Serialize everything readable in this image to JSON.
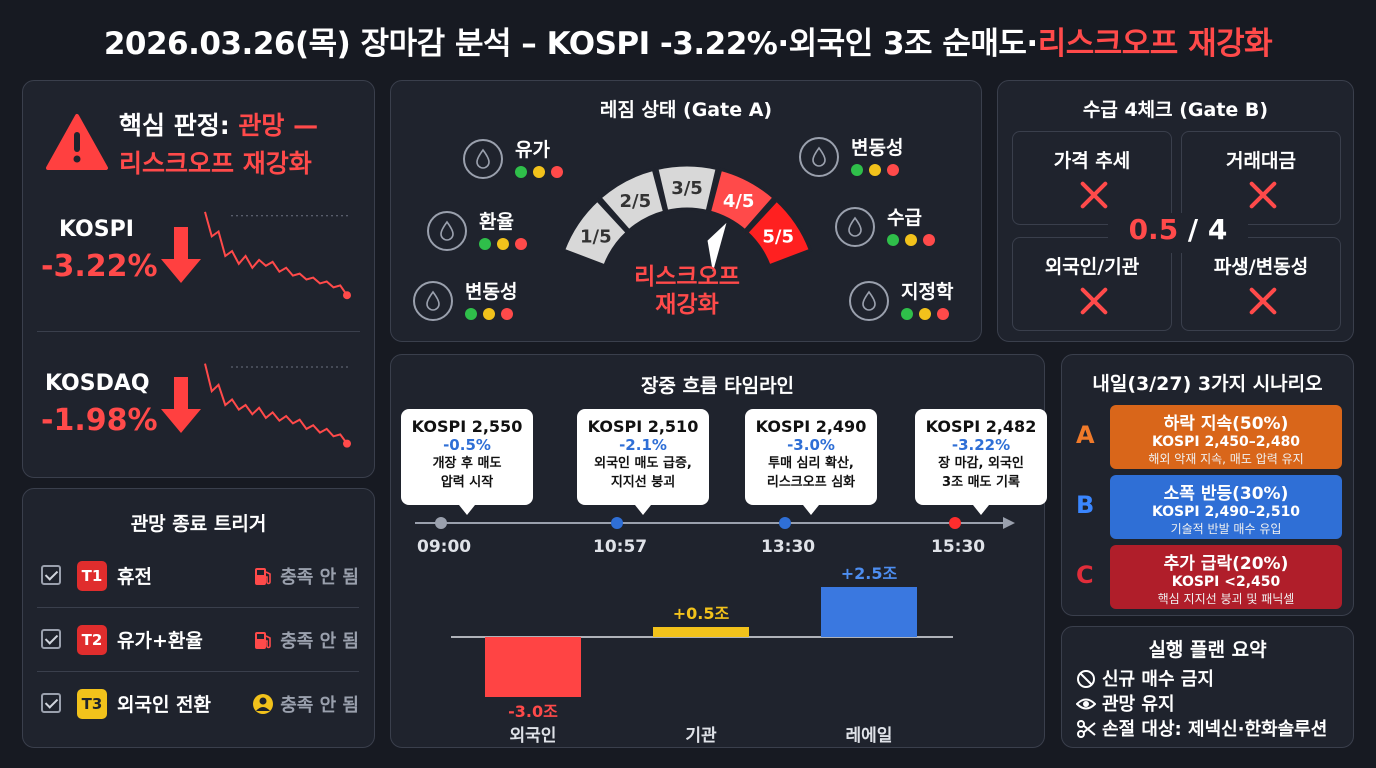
{
  "header": {
    "title_main": "2026.03.26(목) 장마감 분석 – KOSPI -3.22%·외국인 3조 순매도·",
    "title_accent": "리스크오프 재강화"
  },
  "verdict": {
    "icon": "warning-triangle-icon",
    "label": "핵심 판정: ",
    "status_line1": "관망 —",
    "status_line2": "리스크오프 재강화",
    "kospi": {
      "name": "KOSPI",
      "change": "-3.22%",
      "trend": [
        0.95,
        0.7,
        0.75,
        0.5,
        0.55,
        0.42,
        0.5,
        0.38,
        0.46,
        0.4,
        0.44,
        0.34,
        0.38,
        0.3,
        0.32,
        0.26,
        0.28,
        0.22,
        0.24,
        0.18,
        0.2,
        0.1
      ]
    },
    "kosdaq": {
      "name": "KOSDAQ",
      "change": "-1.98%",
      "trend": [
        0.95,
        0.65,
        0.72,
        0.5,
        0.56,
        0.45,
        0.5,
        0.4,
        0.47,
        0.36,
        0.42,
        0.33,
        0.38,
        0.3,
        0.34,
        0.24,
        0.28,
        0.2,
        0.24,
        0.16,
        0.18,
        0.08
      ]
    }
  },
  "triggers": {
    "title": "관망 종료 트리거",
    "items": [
      {
        "badge": "T1",
        "label": "휴전",
        "status": "충족 안 됨",
        "badge_color": "#e02d2d",
        "icon": "fuel-pump-icon"
      },
      {
        "badge": "T2",
        "label": "유가+환율",
        "status": "충족 안 됨",
        "badge_color": "#e02d2d",
        "icon": "fuel-pump-icon"
      },
      {
        "badge": "T3",
        "label": "외국인 전환",
        "status": "충족 안 됨",
        "badge_color": "#f2c21b",
        "icon": "person-icon"
      }
    ]
  },
  "regime": {
    "title": "레짐 상태 (Gate A)",
    "gauge_segments": [
      "1/5",
      "2/5",
      "3/5",
      "4/5",
      "5/5"
    ],
    "gauge_level": 4,
    "state_line1": "리스크오프",
    "state_line2": "재강화",
    "indicators": [
      {
        "label": "유가",
        "icon": "oil-drop-icon"
      },
      {
        "label": "환율",
        "icon": "currency-exchange-icon"
      },
      {
        "label": "변동성",
        "icon": "scatter-chart-icon"
      },
      {
        "label": "변동성",
        "icon": "bar-wave-icon"
      },
      {
        "label": "수급",
        "icon": "flow-icon"
      },
      {
        "label": "지정학",
        "icon": "globe-icon"
      }
    ],
    "light_colors": [
      "#2fbf4a",
      "#f2c21b",
      "#ff4a4a"
    ]
  },
  "gate_b": {
    "title": "수급 4체크 (Gate B)",
    "checks": [
      "가격 추세",
      "거래대금",
      "외국인/기관",
      "파생/변동성"
    ],
    "score_value": "0.5",
    "score_total": " / 4"
  },
  "timeline": {
    "title": "장중 흐름 타임라인",
    "events": [
      {
        "time": "09:00",
        "price": "KOSPI 2,550",
        "change": "-0.5%",
        "desc1": "개장 후 매도",
        "desc2": "압력 시작",
        "dot_color": "#9aa0ad"
      },
      {
        "time": "10:57",
        "price": "KOSPI 2,510",
        "change": "-2.1%",
        "desc1": "외국인 매도 급증,",
        "desc2": "지지선 붕괴",
        "dot_color": "#2f6fd6"
      },
      {
        "time": "13:30",
        "price": "KOSPI 2,490",
        "change": "-3.0%",
        "desc1": "투매 심리 확산,",
        "desc2": "리스크오프 심화",
        "dot_color": "#2f6fd6"
      },
      {
        "time": "15:30",
        "price": "KOSPI 2,482",
        "change": "-3.22%",
        "desc1": "장 마감, 외국인",
        "desc2": "3조 매도 기록",
        "dot_color": "#ff2d2d"
      }
    ],
    "flows": [
      {
        "name": "외국인",
        "value": -3.0,
        "label": "-3.0조",
        "color": "#ff4444"
      },
      {
        "name": "기관",
        "value": 0.5,
        "label": "+0.5조",
        "color": "#f2c21b"
      },
      {
        "name": "레에일",
        "value": 2.5,
        "label": "+2.5조",
        "color": "#3a78e0"
      }
    ]
  },
  "scenarios": {
    "title": "내일(3/27) 3가지 시나리오",
    "items": [
      {
        "letter": "A",
        "line1": "하락 지속(50%)",
        "line2": "KOSPI 2,450–2,480",
        "line3": "해외 악재 지속, 매도 압력 유지",
        "color": "#d9661a",
        "letter_color": "#f07a2a"
      },
      {
        "letter": "B",
        "line1": "소폭 반등(30%)",
        "line2": "KOSPI 2,490–2,510",
        "line3": "기술적 반발 매수 유입",
        "color": "#2f6fd6",
        "letter_color": "#3a86ff"
      },
      {
        "letter": "C",
        "line1": "추가 급락(20%)",
        "line2": "KOSPI <2,450",
        "line3": "핵심 지지선 붕괴 및 패닉셀",
        "color": "#b01e2a",
        "letter_color": "#e02d3a"
      }
    ]
  },
  "plan": {
    "title": "실행 플랜 요약",
    "items": [
      {
        "label": "신규 매수 금지",
        "icon": "prohibited-icon"
      },
      {
        "label": "관망 유지",
        "icon": "eye-icon"
      },
      {
        "label": "손절 대상: 제넥신·한화솔루션",
        "icon": "scissors-icon"
      }
    ]
  }
}
